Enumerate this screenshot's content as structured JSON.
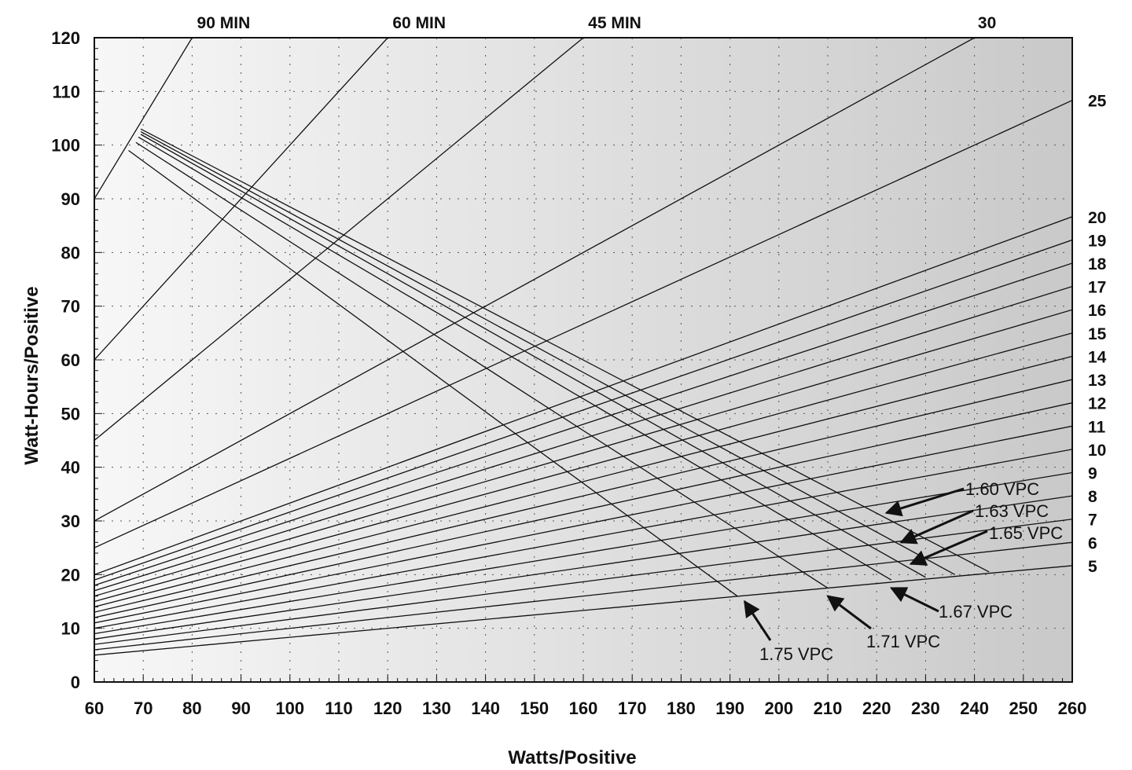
{
  "chart_data": {
    "type": "line",
    "title": "",
    "xlabel": "Watts/Positive",
    "ylabel": "Watt-Hours/Positive",
    "xlim": [
      60,
      260
    ],
    "ylim": [
      0,
      120
    ],
    "x_ticks": [
      "60",
      "70",
      "80",
      "90",
      "100",
      "110",
      "120",
      "130",
      "140",
      "150",
      "160",
      "170",
      "180",
      "190",
      "200",
      "210",
      "220",
      "230",
      "240",
      "250",
      "260"
    ],
    "y_ticks": [
      "0",
      "10",
      "20",
      "30",
      "40",
      "50",
      "60",
      "70",
      "80",
      "90",
      "100",
      "110",
      "120"
    ],
    "grid": true,
    "runtime_lines": [
      {
        "label": "90 MIN",
        "minutes": 90
      },
      {
        "label": "60 MIN",
        "minutes": 60
      },
      {
        "label": "45 MIN",
        "minutes": 45
      },
      {
        "label": "30",
        "minutes": 30
      },
      {
        "label": "25",
        "minutes": 25
      },
      {
        "label": "20",
        "minutes": 20
      },
      {
        "label": "19",
        "minutes": 19
      },
      {
        "label": "18",
        "minutes": 18
      },
      {
        "label": "17",
        "minutes": 17
      },
      {
        "label": "16",
        "minutes": 16
      },
      {
        "label": "15",
        "minutes": 15
      },
      {
        "label": "14",
        "minutes": 14
      },
      {
        "label": "13",
        "minutes": 13
      },
      {
        "label": "12",
        "minutes": 12
      },
      {
        "label": "11",
        "minutes": 11
      },
      {
        "label": "10",
        "minutes": 10
      },
      {
        "label": "9",
        "minutes": 9
      },
      {
        "label": "8",
        "minutes": 8
      },
      {
        "label": "7",
        "minutes": 7
      },
      {
        "label": "6",
        "minutes": 6
      },
      {
        "label": "5",
        "minutes": 5
      }
    ],
    "vpc_curves": [
      {
        "label": "1.60 VPC",
        "points": [
          [
            69.5,
            103
          ],
          [
            243,
            20.5
          ]
        ]
      },
      {
        "label": "1.63 VPC",
        "points": [
          [
            69.5,
            102.5
          ],
          [
            236,
            20
          ]
        ]
      },
      {
        "label": "1.65 VPC",
        "points": [
          [
            69.5,
            102
          ],
          [
            230,
            19.5
          ]
        ]
      },
      {
        "label": "1.67 VPC",
        "points": [
          [
            69,
            101.5
          ],
          [
            223,
            19
          ]
        ]
      },
      {
        "label": "1.71 VPC",
        "points": [
          [
            68.5,
            100.5
          ],
          [
            210,
            17.5
          ]
        ]
      },
      {
        "label": "1.75 VPC",
        "points": [
          [
            67,
            99
          ],
          [
            191.5,
            16
          ]
        ]
      }
    ],
    "annotations": [
      {
        "text": "1.60 VPC",
        "tip": [
          222,
          31.5
        ]
      },
      {
        "text": "1.63 VPC",
        "tip": [
          225,
          26
        ]
      },
      {
        "text": "1.65 VPC",
        "tip": [
          227,
          22
        ]
      },
      {
        "text": "1.67 VPC",
        "tip": [
          223,
          17.5
        ]
      },
      {
        "text": "1.71 VPC",
        "tip": [
          210,
          16
        ]
      },
      {
        "text": "1.75 VPC",
        "tip": [
          193,
          15
        ]
      }
    ]
  }
}
